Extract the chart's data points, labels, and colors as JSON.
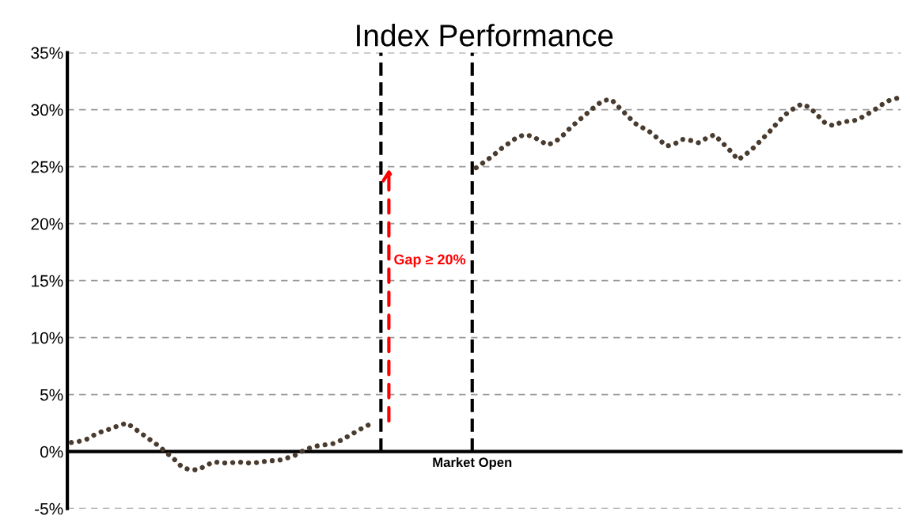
{
  "chart_data": {
    "type": "line",
    "title": "Index Performance",
    "categories": [
      null,
      null,
      null,
      null,
      null,
      null,
      null,
      null,
      null,
      null,
      null,
      null,
      null,
      null,
      null,
      null,
      null,
      null,
      null,
      null,
      null,
      null,
      null,
      null,
      null,
      null,
      null,
      null,
      null,
      null,
      null,
      null,
      null,
      null,
      null,
      null,
      null,
      null,
      null,
      null,
      null,
      null,
      null,
      null,
      null,
      null,
      null,
      null,
      null,
      null,
      null,
      null,
      null,
      null,
      null,
      null,
      null,
      null,
      null,
      null,
      null,
      null,
      null,
      null,
      null,
      null,
      null,
      null,
      null,
      null,
      null,
      null,
      null,
      null,
      null,
      null,
      null,
      null,
      null,
      null,
      null,
      null,
      null,
      null,
      null,
      null,
      null,
      null,
      null,
      null,
      null,
      null,
      null,
      null,
      null,
      null,
      null,
      null,
      null,
      null,
      null,
      null,
      null,
      null,
      null
    ],
    "series": [
      {
        "color": "#4a3b2f",
        "values": [
          0.8,
          0.9,
          1.1,
          1.5,
          1.8,
          2.0,
          2.3,
          2.5,
          2.0,
          1.5,
          1.0,
          0.5,
          -0.1,
          -0.7,
          -1.4,
          -1.6,
          -1.6,
          -1.2,
          -0.9,
          -1.0,
          -1.0,
          -0.9,
          -1.0,
          -1.0,
          -0.9,
          -0.8,
          -0.8,
          -0.6,
          -0.4,
          0.0,
          0.3,
          0.5,
          0.6,
          0.7,
          1.0,
          1.4,
          1.8,
          2.2,
          2.5,
          null,
          null,
          null,
          null,
          null,
          null,
          null,
          null,
          null,
          null,
          null,
          null,
          null,
          null,
          null,
          null,
          null,
          null,
          null,
          null,
          null,
          null,
          null,
          null,
          null,
          null,
          null,
          null,
          null,
          null,
          null,
          null,
          null,
          null,
          null,
          null,
          null,
          null,
          null,
          null,
          null,
          null,
          null,
          null,
          null,
          null,
          null,
          null,
          null,
          null,
          null,
          null,
          null,
          null,
          null,
          null,
          null,
          null,
          null,
          null,
          null,
          null,
          null,
          null,
          null,
          null
        ]
      },
      {
        "color": "#4a3b2f",
        "values": [
          null,
          null,
          null,
          null,
          null,
          null,
          null,
          null,
          null,
          null,
          null,
          null,
          null,
          null,
          null,
          null,
          null,
          null,
          null,
          null,
          null,
          null,
          null,
          null,
          null,
          null,
          null,
          null,
          null,
          null,
          null,
          null,
          null,
          null,
          null,
          null,
          null,
          null,
          null,
          null,
          null,
          null,
          null,
          null,
          null,
          null,
          null,
          null,
          null,
          null,
          null,
          24.9,
          25.4,
          25.9,
          26.5,
          27.0,
          27.5,
          27.8,
          27.7,
          27.3,
          26.9,
          27.2,
          27.8,
          28.5,
          29.1,
          29.7,
          30.3,
          30.8,
          30.9,
          30.2,
          29.5,
          28.8,
          28.4,
          28.0,
          27.4,
          26.8,
          27.0,
          27.4,
          27.3,
          27.1,
          27.5,
          27.8,
          27.1,
          26.4,
          25.6,
          26.1,
          26.7,
          27.4,
          28.1,
          28.9,
          29.6,
          30.1,
          30.5,
          30.2,
          29.5,
          28.8,
          28.6,
          28.9,
          29.0,
          29.1,
          29.5,
          29.9,
          30.4,
          30.8,
          31.0
        ]
      }
    ],
    "ylim": [
      -5,
      35
    ],
    "yticks": [
      {
        "value": -5,
        "label": "-5%"
      },
      {
        "value": 0,
        "label": "0%"
      },
      {
        "value": 5,
        "label": "5%"
      },
      {
        "value": 10,
        "label": "10%"
      },
      {
        "value": 15,
        "label": "15%"
      },
      {
        "value": 20,
        "label": "20%"
      },
      {
        "value": 25,
        "label": "25%"
      },
      {
        "value": 30,
        "label": "30%"
      },
      {
        "value": 35,
        "label": "35%"
      }
    ],
    "annotations": [
      "Gap ≥ 20%",
      "Market Open"
    ],
    "grid": "y",
    "marker": "none",
    "line_style": "dotted",
    "legend": false,
    "tick_labels": "y"
  }
}
